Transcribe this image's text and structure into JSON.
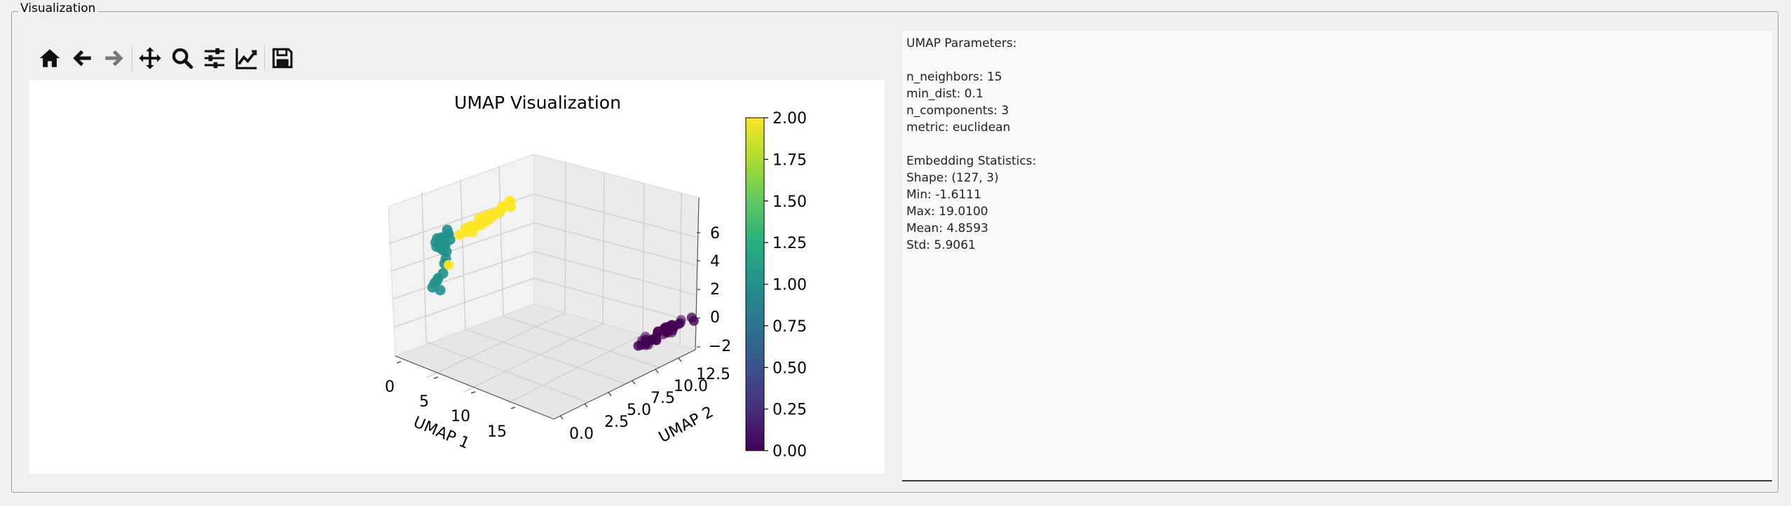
{
  "group_title": "Visualization",
  "toolbar": {
    "items": [
      {
        "icon": "home-icon"
      },
      {
        "icon": "back-arrow-icon"
      },
      {
        "icon": "forward-arrow-icon"
      },
      {
        "icon": "pan-icon"
      },
      {
        "icon": "zoom-icon"
      },
      {
        "icon": "configure-subplots-icon"
      },
      {
        "icon": "edit-axis-icon"
      },
      {
        "icon": "save-icon"
      }
    ]
  },
  "info_lines": [
    "UMAP Parameters:",
    "",
    "n_neighbors: 15",
    "min_dist: 0.1",
    "n_components: 3",
    "metric: euclidean",
    "",
    "Embedding Statistics:",
    "Shape: (127, 3)",
    "Min: -1.6111",
    "Max: 19.0100",
    "Mean: 4.8593",
    "Std: 5.9061"
  ],
  "chart_data": {
    "type": "scatter",
    "projection": "3d",
    "title": "UMAP Visualization",
    "xlabel": "UMAP 1",
    "ylabel": "UMAP 2",
    "zlabel": "",
    "x_ticks": [
      "0",
      "5",
      "10",
      "15"
    ],
    "y_ticks": [
      "0.0",
      "2.5",
      "5.0",
      "7.5",
      "10.0",
      "12.5"
    ],
    "z_ticks": [
      "6",
      "4",
      "2",
      "0",
      "−2"
    ],
    "colormap": "viridis",
    "colorbar": {
      "range": [
        0,
        2
      ],
      "ticks": [
        "2.00",
        "1.75",
        "1.50",
        "1.25",
        "1.00",
        "0.75",
        "0.50",
        "0.25",
        "0.00"
      ]
    },
    "clusters": [
      {
        "label": 0,
        "color": "#440154",
        "x_range": [
          17,
          19
        ],
        "y_range": [
          9,
          13
        ],
        "z_range": [
          -2,
          -1
        ]
      },
      {
        "label": 1,
        "color": "#21918c",
        "x_range": [
          0,
          2
        ],
        "y_range": [
          0,
          2
        ],
        "z_range": [
          2,
          7
        ]
      },
      {
        "label": 2,
        "color": "#fde725",
        "x_range": [
          1,
          4
        ],
        "y_range": [
          1,
          4
        ],
        "z_range": [
          3,
          7
        ]
      }
    ]
  }
}
